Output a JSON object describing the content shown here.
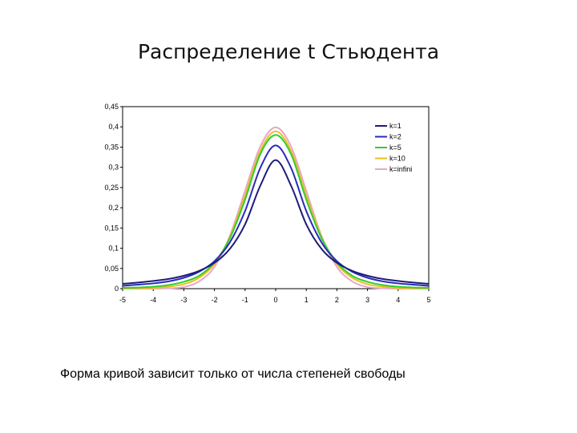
{
  "slide": {
    "title": "Распределение t Стьюдента",
    "caption": "Форма кривой зависит только от числа степеней свободы"
  },
  "chart_data": {
    "type": "line",
    "title": "",
    "xlabel": "",
    "ylabel": "",
    "xlim": [
      -5,
      5
    ],
    "ylim": [
      0,
      0.45
    ],
    "x_ticks": [
      "-5",
      "-4",
      "-3",
      "-2",
      "-1",
      "0",
      "1",
      "2",
      "3",
      "4",
      "5"
    ],
    "y_ticks": [
      "0",
      "0,05",
      "0,1",
      "0,15",
      "0,2",
      "0,25",
      "0,3",
      "0,35",
      "0,4",
      "0,45"
    ],
    "grid": false,
    "legend_position": "top-right",
    "x": [
      -5,
      -4.5,
      -4,
      -3.5,
      -3,
      -2.5,
      -2,
      -1.5,
      -1,
      -0.5,
      0,
      0.5,
      1,
      1.5,
      2,
      2.5,
      3,
      3.5,
      4,
      4.5,
      5
    ],
    "series": [
      {
        "name": "k=1",
        "color": "#1c1c78",
        "values": [
          0.012,
          0.015,
          0.019,
          0.024,
          0.032,
          0.044,
          0.064,
          0.098,
          0.159,
          0.255,
          0.318,
          0.255,
          0.159,
          0.098,
          0.064,
          0.044,
          0.032,
          0.024,
          0.019,
          0.015,
          0.012
        ]
      },
      {
        "name": "k=2",
        "color": "#2a2ab8",
        "values": [
          0.007,
          0.01,
          0.013,
          0.018,
          0.027,
          0.042,
          0.068,
          0.114,
          0.192,
          0.299,
          0.354,
          0.299,
          0.192,
          0.114,
          0.068,
          0.042,
          0.027,
          0.018,
          0.013,
          0.01,
          0.007
        ]
      },
      {
        "name": "k=5",
        "color": "#33cc33",
        "values": [
          0.002,
          0.003,
          0.005,
          0.009,
          0.017,
          0.032,
          0.065,
          0.124,
          0.22,
          0.333,
          0.38,
          0.333,
          0.22,
          0.124,
          0.065,
          0.032,
          0.017,
          0.009,
          0.005,
          0.003,
          0.002
        ]
      },
      {
        "name": "k=10",
        "color": "#e8c020",
        "values": [
          0.0,
          0.001,
          0.002,
          0.005,
          0.011,
          0.027,
          0.061,
          0.127,
          0.23,
          0.341,
          0.389,
          0.341,
          0.23,
          0.127,
          0.061,
          0.027,
          0.011,
          0.005,
          0.002,
          0.001,
          0.0
        ]
      },
      {
        "name": "k=infini",
        "color": "#e6a8c8",
        "values": [
          0.0,
          0.0,
          0.0,
          0.001,
          0.004,
          0.018,
          0.054,
          0.13,
          0.242,
          0.352,
          0.399,
          0.352,
          0.242,
          0.13,
          0.054,
          0.018,
          0.004,
          0.001,
          0.0,
          0.0,
          0.0
        ]
      }
    ]
  }
}
